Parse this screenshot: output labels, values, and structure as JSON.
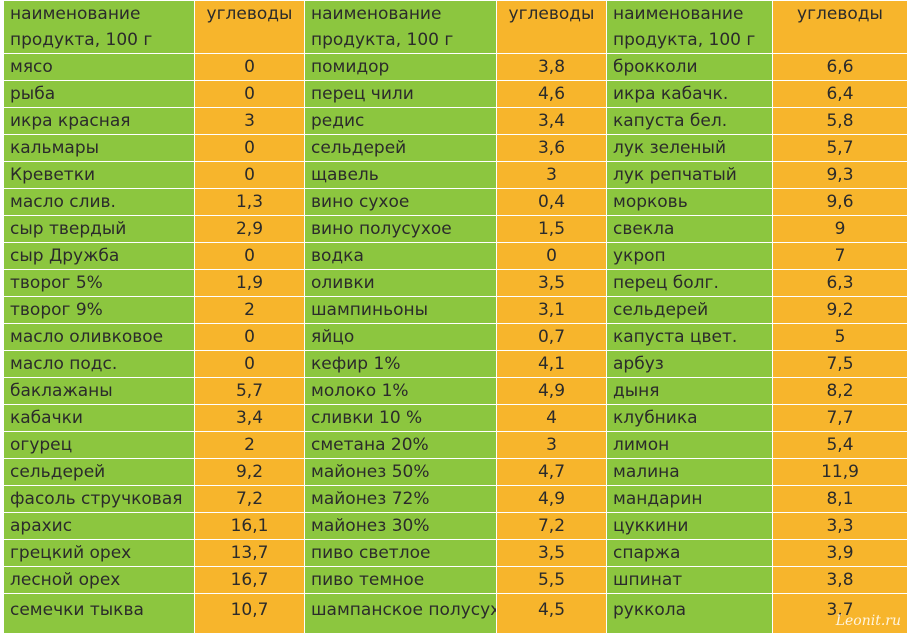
{
  "headers": {
    "name": "наименование продукта, 100 г",
    "value": "углеводы"
  },
  "rows": [
    [
      "мясо",
      "0",
      "помидор",
      "3,8",
      "брокколи",
      "6,6"
    ],
    [
      "рыба",
      "0",
      "перец чили",
      "4,6",
      "икра кабачк.",
      "6,4"
    ],
    [
      "икра красная",
      "3",
      "редис",
      "3,4",
      "капуста бел.",
      "5,8"
    ],
    [
      "кальмары",
      "0",
      "сельдерей",
      "3,6",
      "лук зеленый",
      "5,7"
    ],
    [
      "Креветки",
      "0",
      "щавель",
      "3",
      "лук репчатый",
      "9,3"
    ],
    [
      "масло слив.",
      "1,3",
      "вино сухое",
      "0,4",
      "морковь",
      "9,6"
    ],
    [
      "сыр твердый",
      "2,9",
      "вино полусухое",
      "1,5",
      "свекла",
      "9"
    ],
    [
      "сыр Дружба",
      "0",
      "водка",
      "0",
      "укроп",
      "7"
    ],
    [
      "творог 5%",
      "1,9",
      "оливки",
      "3,5",
      "перец болг.",
      "6,3"
    ],
    [
      "творог 9%",
      "2",
      "шампиньоны",
      "3,1",
      "сельдерей",
      "9,2"
    ],
    [
      "масло оливковое",
      "0",
      "яйцо",
      "0,7",
      "капуста цвет.",
      "5"
    ],
    [
      "масло подс.",
      "0",
      "кефир 1%",
      "4,1",
      "арбуз",
      "7,5"
    ],
    [
      "баклажаны",
      "5,7",
      "молоко 1%",
      "4,9",
      "дыня",
      "8,2"
    ],
    [
      "кабачки",
      "3,4",
      "сливки 10 %",
      "4",
      "клубника",
      "7,7"
    ],
    [
      "огурец",
      "2",
      "сметана 20%",
      "3",
      "лимон",
      "5,4"
    ],
    [
      "сельдерей",
      "9,2",
      "майонез 50%",
      "4,7",
      "малина",
      "11,9"
    ],
    [
      "фасоль стручковая",
      "7,2",
      "майонез 72%",
      "4,9",
      "мандарин",
      "8,1"
    ],
    [
      "арахис",
      "16,1",
      "майонез 30%",
      "7,2",
      "цуккини",
      "3,3"
    ],
    [
      "грецкий орех",
      "13,7",
      "пиво светлое",
      "3,5",
      "спаржа",
      "3,9"
    ],
    [
      "лесной орех",
      "16,7",
      "пиво темное",
      "5,5",
      "шпинат",
      "3,8"
    ],
    [
      "семечки тыква",
      "10,7",
      "шампанское полусухое",
      "4,5",
      "руккола",
      "3,7"
    ]
  ],
  "watermark": "Leonit.ru",
  "colors": {
    "name_column": "#8cc63f",
    "value_column": "#f7b52c",
    "text": "#2b2b2b"
  }
}
